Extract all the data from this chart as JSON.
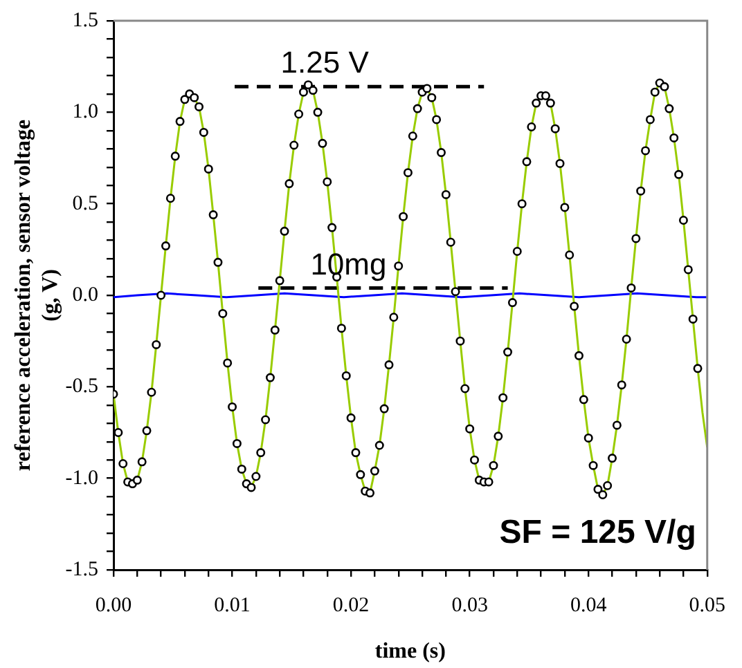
{
  "chart_data": {
    "type": "line",
    "xlabel": "time (s)",
    "ylabel": "reference acceleration, sensor voltage\n(g, V)",
    "xlim": [
      0,
      0.05
    ],
    "ylim": [
      -1.5,
      1.5
    ],
    "xticks": [
      {
        "value": 0,
        "label": "0.00"
      },
      {
        "value": 0.002,
        "label": null
      },
      {
        "value": 0.004,
        "label": null
      },
      {
        "value": 0.006,
        "label": null
      },
      {
        "value": 0.008,
        "label": null
      },
      {
        "value": 0.01,
        "label": "0.01"
      },
      {
        "value": 0.012,
        "label": null
      },
      {
        "value": 0.014,
        "label": null
      },
      {
        "value": 0.016,
        "label": null
      },
      {
        "value": 0.018,
        "label": null
      },
      {
        "value": 0.02,
        "label": "0.02"
      },
      {
        "value": 0.022,
        "label": null
      },
      {
        "value": 0.024,
        "label": null
      },
      {
        "value": 0.026,
        "label": null
      },
      {
        "value": 0.028,
        "label": null
      },
      {
        "value": 0.03,
        "label": "0.03"
      },
      {
        "value": 0.032,
        "label": null
      },
      {
        "value": 0.034,
        "label": null
      },
      {
        "value": 0.036,
        "label": null
      },
      {
        "value": 0.038,
        "label": null
      },
      {
        "value": 0.04,
        "label": "0.04"
      },
      {
        "value": 0.042,
        "label": null
      },
      {
        "value": 0.044,
        "label": null
      },
      {
        "value": 0.046,
        "label": null
      },
      {
        "value": 0.048,
        "label": null
      },
      {
        "value": 0.05,
        "label": "0.05"
      }
    ],
    "yticks": [
      -1.5,
      {
        "value": -1.4,
        "label": null
      },
      {
        "value": -1.3,
        "label": null
      },
      {
        "value": -1.2,
        "label": null
      },
      {
        "value": -1.1,
        "label": null
      },
      {
        "value": -1,
        "label": "-1.0"
      },
      {
        "value": -0.9,
        "label": null
      },
      {
        "value": -0.8,
        "label": null
      },
      {
        "value": -0.7,
        "label": null
      },
      {
        "value": -0.6,
        "label": null
      },
      -0.5,
      {
        "value": -0.4,
        "label": null
      },
      {
        "value": -0.3,
        "label": null
      },
      {
        "value": -0.2,
        "label": null
      },
      {
        "value": -0.1,
        "label": null
      },
      {
        "value": 0,
        "label": "0.0"
      },
      {
        "value": 0.1,
        "label": null
      },
      {
        "value": 0.2,
        "label": null
      },
      {
        "value": 0.3,
        "label": null
      },
      {
        "value": 0.4,
        "label": null
      },
      0.5,
      {
        "value": 0.6,
        "label": null
      },
      {
        "value": 0.7,
        "label": null
      },
      {
        "value": 0.8,
        "label": null
      },
      {
        "value": 0.9,
        "label": null
      },
      {
        "value": 1,
        "label": "1.0"
      },
      {
        "value": 1.1,
        "label": null
      },
      {
        "value": 1.2,
        "label": null
      },
      {
        "value": 1.3,
        "label": null
      },
      {
        "value": 1.4,
        "label": null
      },
      1.5
    ],
    "series": [
      {
        "type": "line",
        "marker": "none",
        "line_style": "solid",
        "color": "#99cc00",
        "x": [
          0,
          0.0004,
          0.0008,
          0.0012,
          0.0016,
          0.002,
          0.0024,
          0.0028,
          0.0032,
          0.0036,
          0.004,
          0.0044,
          0.0048,
          0.0052,
          0.0056,
          0.006,
          0.0064,
          0.0068,
          0.0072,
          0.0076,
          0.008,
          0.0084,
          0.0088,
          0.0092,
          0.0096,
          0.01,
          0.0104,
          0.0108,
          0.0112,
          0.0116,
          0.012,
          0.0124,
          0.0128,
          0.0132,
          0.0136,
          0.014,
          0.0144,
          0.0148,
          0.0152,
          0.0156,
          0.016,
          0.0164,
          0.0168,
          0.0172,
          0.0176,
          0.018,
          0.0184,
          0.0188,
          0.0192,
          0.0196,
          0.02,
          0.0204,
          0.0208,
          0.0212,
          0.0216,
          0.022,
          0.0224,
          0.0228,
          0.0232,
          0.0236,
          0.024,
          0.0244,
          0.0248,
          0.0252,
          0.0256,
          0.026,
          0.0264,
          0.0268,
          0.0272,
          0.0276,
          0.028,
          0.0284,
          0.0288,
          0.0292,
          0.0296,
          0.03,
          0.0304,
          0.0308,
          0.0312,
          0.0316,
          0.032,
          0.0324,
          0.0328,
          0.0332,
          0.0336,
          0.034,
          0.0344,
          0.0348,
          0.0352,
          0.0356,
          0.036,
          0.0364,
          0.0368,
          0.0372,
          0.0376,
          0.038,
          0.0384,
          0.0388,
          0.0392,
          0.0396,
          0.04,
          0.0404,
          0.0408,
          0.0412,
          0.0416,
          0.042,
          0.0424,
          0.0428,
          0.0432,
          0.0436,
          0.044,
          0.0444,
          0.0448,
          0.0452,
          0.0456,
          0.046,
          0.0464,
          0.0468,
          0.0472,
          0.0476,
          0.048,
          0.0484,
          0.0488,
          0.0492,
          0.0496,
          0.05
        ],
        "values": [
          -0.54,
          -0.75,
          -0.92,
          -1.02,
          -1.03,
          -1.01,
          -0.91,
          -0.74,
          -0.53,
          -0.27,
          0.0,
          0.27,
          0.53,
          0.76,
          0.95,
          1.07,
          1.1,
          1.08,
          1.03,
          0.89,
          0.69,
          0.44,
          0.18,
          -0.1,
          -0.37,
          -0.61,
          -0.81,
          -0.95,
          -1.03,
          -1.05,
          -0.99,
          -0.86,
          -0.68,
          -0.45,
          -0.19,
          0.08,
          0.35,
          0.61,
          0.82,
          0.99,
          1.11,
          1.15,
          1.12,
          1.0,
          0.83,
          0.62,
          0.37,
          0.1,
          -0.18,
          -0.44,
          -0.67,
          -0.86,
          -0.98,
          -1.07,
          -1.08,
          -0.96,
          -0.82,
          -0.62,
          -0.38,
          -0.12,
          0.16,
          0.43,
          0.67,
          0.87,
          1.02,
          1.11,
          1.13,
          1.08,
          0.96,
          0.78,
          0.55,
          0.29,
          0.02,
          -0.25,
          -0.51,
          -0.73,
          -0.9,
          -1.01,
          -1.02,
          -1.02,
          -0.93,
          -0.77,
          -0.56,
          -0.31,
          -0.04,
          0.24,
          0.5,
          0.73,
          0.92,
          1.05,
          1.09,
          1.09,
          1.05,
          0.91,
          0.72,
          0.48,
          0.22,
          -0.06,
          -0.33,
          -0.57,
          -0.78,
          -0.93,
          -1.06,
          -1.09,
          -1.04,
          -0.89,
          -0.71,
          -0.49,
          -0.24,
          0.04,
          0.31,
          0.57,
          0.79,
          0.96,
          1.11,
          1.16,
          1.14,
          1.02,
          0.86,
          0.66,
          0.41,
          0.14,
          -0.13,
          -0.4,
          -0.64,
          -0.83
        ]
      },
      {
        "type": "scatter",
        "marker": "circle",
        "color": "#000000",
        "x": [
          0,
          0.0004,
          0.0008,
          0.0012,
          0.0016,
          0.002,
          0.0024,
          0.0028,
          0.0032,
          0.0036,
          0.004,
          0.0044,
          0.0048,
          0.0052,
          0.0056,
          0.006,
          0.0064,
          0.0068,
          0.0072,
          0.0076,
          0.008,
          0.0084,
          0.0088,
          0.0092,
          0.0096,
          0.01,
          0.0104,
          0.0108,
          0.0112,
          0.0116,
          0.012,
          0.0124,
          0.0128,
          0.0132,
          0.0136,
          0.014,
          0.0144,
          0.0148,
          0.0152,
          0.0156,
          0.016,
          0.0164,
          0.0168,
          0.0172,
          0.0176,
          0.018,
          0.0184,
          0.0188,
          0.0192,
          0.0196,
          0.02,
          0.0204,
          0.0208,
          0.0212,
          0.0216,
          0.022,
          0.0224,
          0.0228,
          0.0232,
          0.0236,
          0.024,
          0.0244,
          0.0248,
          0.0252,
          0.0256,
          0.026,
          0.0264,
          0.0268,
          0.0272,
          0.0276,
          0.028,
          0.0284,
          0.0288,
          0.0292,
          0.0296,
          0.03,
          0.0304,
          0.0308,
          0.0312,
          0.0316,
          0.032,
          0.0324,
          0.0328,
          0.0332,
          0.0336,
          0.034,
          0.0344,
          0.0348,
          0.0352,
          0.0356,
          0.036,
          0.0364,
          0.0368,
          0.0372,
          0.0376,
          0.038,
          0.0384,
          0.0388,
          0.0392,
          0.0396,
          0.04,
          0.0404,
          0.0408,
          0.0412,
          0.0416,
          0.042,
          0.0424,
          0.0428,
          0.0432,
          0.0436,
          0.044,
          0.0444,
          0.0448,
          0.0452,
          0.0456,
          0.046,
          0.0464,
          0.0468,
          0.0472,
          0.0476,
          0.048,
          0.0484,
          0.0488,
          0.0492
        ],
        "values": [
          -0.54,
          -0.75,
          -0.92,
          -1.02,
          -1.03,
          -1.01,
          -0.91,
          -0.74,
          -0.53,
          -0.27,
          0.0,
          0.27,
          0.53,
          0.76,
          0.95,
          1.07,
          1.1,
          1.08,
          1.03,
          0.89,
          0.69,
          0.44,
          0.18,
          -0.1,
          -0.37,
          -0.61,
          -0.81,
          -0.95,
          -1.03,
          -1.05,
          -0.99,
          -0.86,
          -0.68,
          -0.45,
          -0.19,
          0.08,
          0.35,
          0.61,
          0.82,
          0.99,
          1.11,
          1.15,
          1.12,
          1.0,
          0.83,
          0.62,
          0.37,
          0.1,
          -0.18,
          -0.44,
          -0.67,
          -0.86,
          -0.98,
          -1.07,
          -1.08,
          -0.96,
          -0.82,
          -0.62,
          -0.38,
          -0.12,
          0.16,
          0.43,
          0.67,
          0.87,
          1.02,
          1.11,
          1.13,
          1.08,
          0.96,
          0.78,
          0.55,
          0.29,
          0.02,
          -0.25,
          -0.51,
          -0.73,
          -0.9,
          -1.01,
          -1.02,
          -1.02,
          -0.93,
          -0.77,
          -0.56,
          -0.31,
          -0.04,
          0.24,
          0.5,
          0.73,
          0.92,
          1.05,
          1.09,
          1.09,
          1.05,
          0.91,
          0.72,
          0.48,
          0.22,
          -0.06,
          -0.33,
          -0.57,
          -0.78,
          -0.93,
          -1.06,
          -1.09,
          -1.04,
          -0.89,
          -0.71,
          -0.49,
          -0.24,
          0.04,
          0.31,
          0.57,
          0.79,
          0.96,
          1.11,
          1.16,
          1.14,
          1.02,
          0.86,
          0.66,
          0.41,
          0.14,
          -0.13,
          -0.4
        ]
      },
      {
        "type": "line",
        "marker": "none",
        "line_style": "solid",
        "color": "#0000ff",
        "x": [
          0,
          0.002,
          0.0045,
          0.007,
          0.0095,
          0.012,
          0.0144,
          0.0169,
          0.0194,
          0.0219,
          0.0243,
          0.0268,
          0.0293,
          0.0318,
          0.0342,
          0.0367,
          0.0392,
          0.0417,
          0.0441,
          0.0466,
          0.0491,
          0.05
        ],
        "values": [
          -0.01,
          0.0,
          0.01,
          0.0,
          -0.01,
          0.0,
          0.01,
          0.0,
          -0.01,
          0.0,
          0.01,
          0.0,
          -0.01,
          0.0,
          0.01,
          0.0,
          -0.01,
          0.0,
          0.01,
          0.0,
          -0.01,
          -0.01
        ]
      },
      {
        "name": "1.25 V",
        "type": "line",
        "marker": "none",
        "line_style": "dashed",
        "color": "#000000",
        "x": [
          0.0102,
          0.0312
        ],
        "values": [
          1.14,
          1.14
        ]
      },
      {
        "name": "10mg",
        "type": "line",
        "marker": "none",
        "line_style": "dashed",
        "color": "#000000",
        "x": [
          0.0122,
          0.0332
        ],
        "values": [
          0.04,
          0.04
        ]
      }
    ],
    "annotations": [
      "SF = 125 V/g"
    ]
  }
}
